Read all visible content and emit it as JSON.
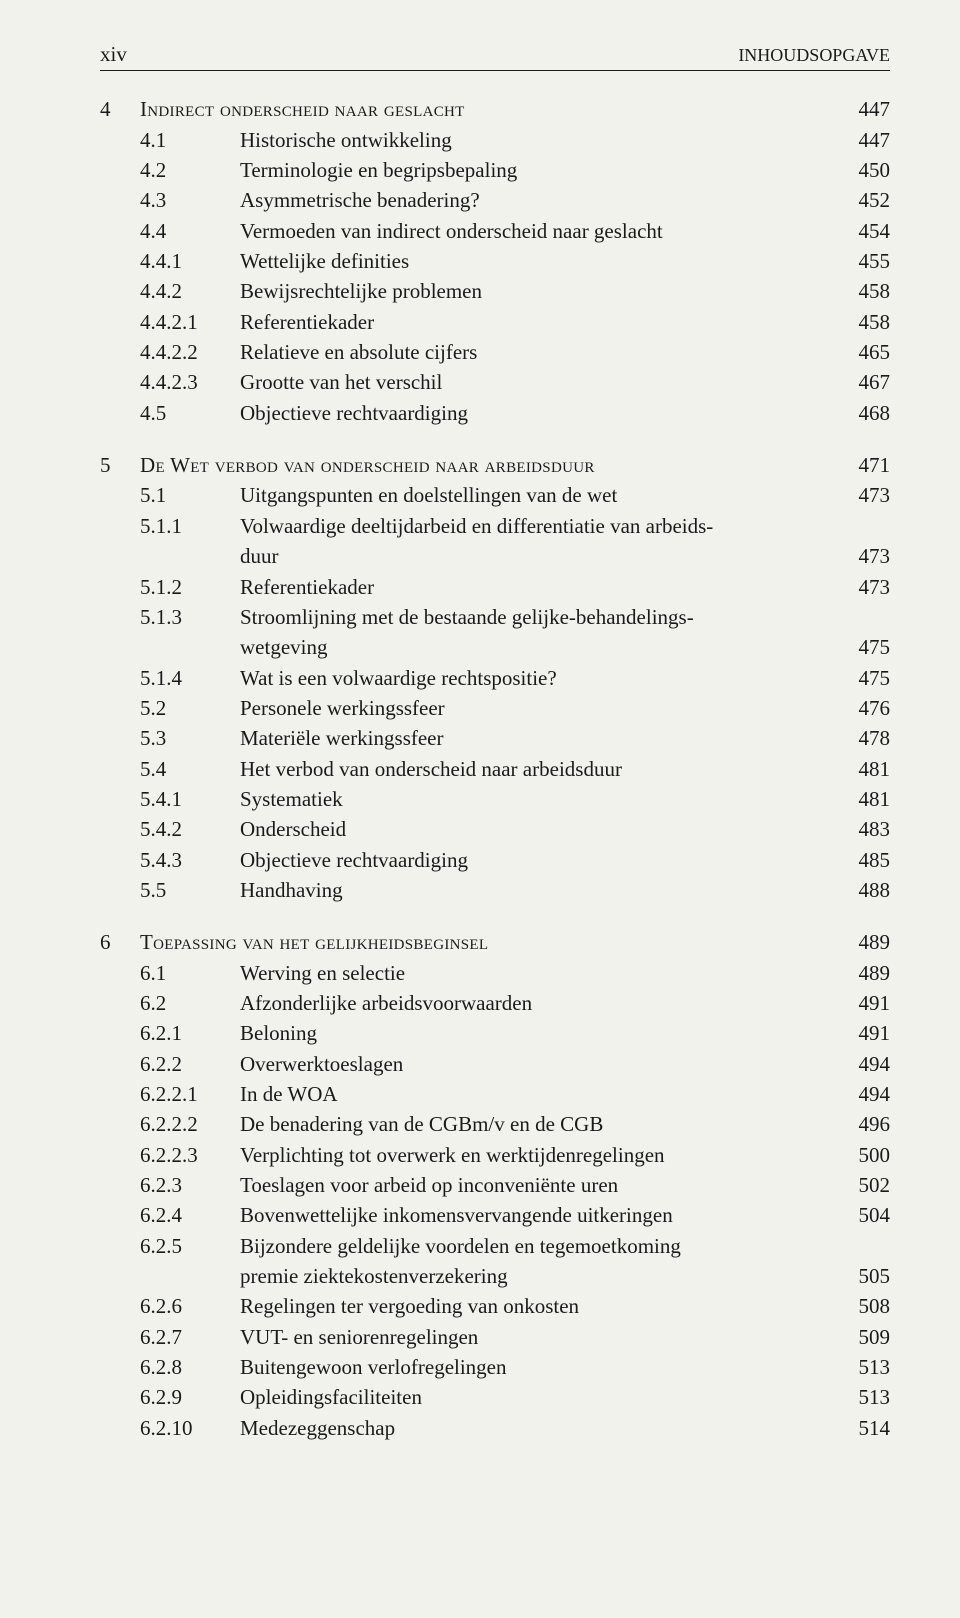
{
  "header": {
    "left": "xiv",
    "right": "INHOUDSOPGAVE"
  },
  "sections": [
    {
      "chapter": "4",
      "heading": "Indirect onderscheid naar geslacht",
      "heading_page": "447",
      "entries": [
        {
          "num": "4.1",
          "title": "Historische ontwikkeling",
          "page": "447"
        },
        {
          "num": "4.2",
          "title": "Terminologie en begripsbepaling",
          "page": "450"
        },
        {
          "num": "4.3",
          "title": "Asymmetrische benadering?",
          "page": "452"
        },
        {
          "num": "4.4",
          "title": "Vermoeden van indirect onderscheid naar geslacht",
          "page": "454"
        },
        {
          "num": "4.4.1",
          "title": "Wettelijke definities",
          "page": "455"
        },
        {
          "num": "4.4.2",
          "title": "Bewijsrechtelijke problemen",
          "page": "458"
        },
        {
          "num": "4.4.2.1",
          "title": "Referentiekader",
          "page": "458"
        },
        {
          "num": "4.4.2.2",
          "title": "Relatieve en absolute cijfers",
          "page": "465"
        },
        {
          "num": "4.4.2.3",
          "title": "Grootte van het verschil",
          "page": "467"
        },
        {
          "num": "4.5",
          "title": "Objectieve rechtvaardiging",
          "page": "468"
        }
      ]
    },
    {
      "chapter": "5",
      "heading": "De Wet verbod van onderscheid naar arbeidsduur",
      "heading_page": "471",
      "entries": [
        {
          "num": "5.1",
          "title": "Uitgangspunten en doelstellingen van de wet",
          "page": "473"
        },
        {
          "num": "5.1.1",
          "title": "Volwaardige deeltijdarbeid en differentiatie van arbeids-",
          "page": "",
          "cont": "duur",
          "cont_page": "473"
        },
        {
          "num": "5.1.2",
          "title": "Referentiekader",
          "page": "473"
        },
        {
          "num": "5.1.3",
          "title": "Stroomlijning met de bestaande gelijke-behandelings-",
          "page": "",
          "cont": "wetgeving",
          "cont_page": "475"
        },
        {
          "num": "5.1.4",
          "title": "Wat is een volwaardige rechtspositie?",
          "page": "475"
        },
        {
          "num": "5.2",
          "title": "Personele werkingssfeer",
          "page": "476"
        },
        {
          "num": "5.3",
          "title": "Materiële werkingssfeer",
          "page": "478"
        },
        {
          "num": "5.4",
          "title": "Het verbod van onderscheid naar arbeidsduur",
          "page": "481"
        },
        {
          "num": "5.4.1",
          "title": "Systematiek",
          "page": "481"
        },
        {
          "num": "5.4.2",
          "title": "Onderscheid",
          "page": "483"
        },
        {
          "num": "5.4.3",
          "title": "Objectieve rechtvaardiging",
          "page": "485"
        },
        {
          "num": "5.5",
          "title": "Handhaving",
          "page": "488"
        }
      ]
    },
    {
      "chapter": "6",
      "heading": "Toepassing van het gelijkheidsbeginsel",
      "heading_page": "489",
      "entries": [
        {
          "num": "6.1",
          "title": "Werving en selectie",
          "page": "489"
        },
        {
          "num": "6.2",
          "title": "Afzonderlijke arbeidsvoorwaarden",
          "page": "491"
        },
        {
          "num": "6.2.1",
          "title": "Beloning",
          "page": "491"
        },
        {
          "num": "6.2.2",
          "title": "Overwerktoeslagen",
          "page": "494"
        },
        {
          "num": "6.2.2.1",
          "title": "In de WOA",
          "page": "494"
        },
        {
          "num": "6.2.2.2",
          "title": "De benadering van de CGBm/v en de CGB",
          "page": "496"
        },
        {
          "num": "6.2.2.3",
          "title": "Verplichting tot overwerk en werktijdenregelingen",
          "page": "500"
        },
        {
          "num": "6.2.3",
          "title": "Toeslagen voor arbeid op inconveniënte uren",
          "page": "502"
        },
        {
          "num": "6.2.4",
          "title": "Bovenwettelijke inkomensvervangende uitkeringen",
          "page": "504"
        },
        {
          "num": "6.2.5",
          "title": "Bijzondere geldelijke voordelen en tegemoetkoming",
          "page": "",
          "cont": "premie ziektekostenverzekering",
          "cont_page": "505"
        },
        {
          "num": "6.2.6",
          "title": "Regelingen ter vergoeding van onkosten",
          "page": "508"
        },
        {
          "num": "6.2.7",
          "title": "VUT- en seniorenregelingen",
          "page": "509"
        },
        {
          "num": "6.2.8",
          "title": "Buitengewoon verlofregelingen",
          "page": "513"
        },
        {
          "num": "6.2.9",
          "title": "Opleidingsfaciliteiten",
          "page": "513"
        },
        {
          "num": "6.2.10",
          "title": "Medezeggenschap",
          "page": "514"
        }
      ]
    }
  ]
}
